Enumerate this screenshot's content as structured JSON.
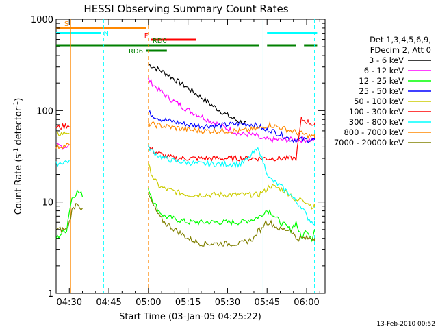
{
  "chart_data": {
    "type": "line",
    "title": "HESSI Observing Summary Count Rates",
    "xlabel": "Start Time (03-Jan-05 04:25:22)",
    "ylabel_main": "Count Rate (s",
    "ylabel_sup1": "-1",
    "ylabel_mid": " detector",
    "ylabel_sup2": "-1",
    "ylabel_end": ")",
    "y_scale": "log",
    "ylim": [
      1,
      1000
    ],
    "xlim_minutes": [
      -5,
      97
    ],
    "x_ticks": [
      {
        "label": "04:30",
        "min": 0
      },
      {
        "label": "04:45",
        "min": 15
      },
      {
        "label": "05:00",
        "min": 30
      },
      {
        "label": "05:15",
        "min": 45
      },
      {
        "label": "05:30",
        "min": 60
      },
      {
        "label": "05:45",
        "min": 75
      },
      {
        "label": "06:00",
        "min": 90
      }
    ],
    "y_ticks": [
      {
        "label": "1",
        "value": 1
      },
      {
        "label": "10",
        "value": 10
      },
      {
        "label": "100",
        "value": 100
      },
      {
        "label": "1000",
        "value": 1000
      }
    ],
    "legend_header": [
      "Det 1,3,4,5,6,9,",
      "FDecim 2, Att 0"
    ],
    "legend_placement": "right",
    "series": [
      {
        "name": "3 - 6 keV",
        "color": "#000000",
        "x": [
          30,
          32,
          35,
          38,
          41,
          44,
          47,
          50,
          53,
          56,
          59,
          62,
          65,
          67
        ],
        "y": [
          320,
          300,
          270,
          240,
          210,
          185,
          160,
          140,
          120,
          105,
          92,
          82,
          75,
          72
        ]
      },
      {
        "name": "6 - 12 keV",
        "color": "#ff00ff",
        "x": [
          -5,
          -2,
          0,
          30,
          32,
          35,
          38,
          41,
          44,
          47,
          50,
          53,
          56,
          59,
          62,
          65,
          68,
          71,
          73,
          74,
          76,
          78,
          80,
          82,
          84,
          86,
          88,
          90,
          92,
          93
        ],
        "y": [
          42,
          40,
          42,
          220,
          190,
          160,
          135,
          120,
          105,
          95,
          87,
          78,
          72,
          65,
          60,
          55,
          55,
          53,
          48,
          48,
          48,
          48,
          48,
          48,
          48,
          48,
          48,
          48,
          48,
          48
        ]
      },
      {
        "name": "12 - 25 keV",
        "color": "#00ff00",
        "x": [
          -5,
          -3,
          -1,
          0,
          1,
          3,
          5,
          30,
          32,
          34,
          36,
          40,
          45,
          50,
          55,
          60,
          65,
          70,
          72,
          73,
          74,
          76,
          80,
          84,
          86,
          88,
          90,
          92,
          93
        ],
        "y": [
          4,
          4.5,
          5,
          8,
          11,
          13,
          12,
          14,
          10,
          8,
          7,
          6.5,
          6,
          6,
          6,
          6,
          6,
          6.5,
          7,
          7,
          8,
          8,
          6,
          5,
          6,
          4,
          5,
          4,
          5
        ]
      },
      {
        "name": "25 - 50 keV",
        "color": "#0000ff",
        "x": [
          30,
          32,
          35,
          40,
          45,
          50,
          55,
          60,
          65,
          70,
          73,
          74,
          76,
          78,
          80,
          82,
          84,
          86,
          88,
          90,
          92,
          93
        ],
        "y": [
          95,
          88,
          80,
          75,
          70,
          68,
          68,
          70,
          72,
          70,
          65,
          60,
          62,
          58,
          55,
          52,
          48,
          48,
          48,
          48,
          48,
          48
        ]
      },
      {
        "name": "50 - 100 keV",
        "color": "#cccc00",
        "x": [
          -5,
          -3,
          0,
          30,
          32,
          34,
          36,
          40,
          45,
          50,
          55,
          60,
          65,
          70,
          72,
          73,
          74,
          76,
          80,
          84,
          86,
          88,
          90,
          92,
          93
        ],
        "y": [
          55,
          56,
          58,
          25,
          18,
          15,
          14,
          13,
          12,
          12,
          12,
          12,
          12,
          12,
          12,
          13,
          13,
          15,
          14,
          12,
          10,
          11,
          10,
          9,
          9
        ]
      },
      {
        "name": "100 - 300 keV",
        "color": "#ff0000",
        "x": [
          -5,
          -3,
          0,
          30,
          32,
          34,
          36,
          40,
          45,
          50,
          55,
          60,
          65,
          70,
          72,
          73,
          74,
          76,
          80,
          84,
          86,
          88,
          90,
          92,
          93
        ],
        "y": [
          65,
          66,
          70,
          40,
          36,
          34,
          32,
          30,
          30,
          30,
          30,
          30,
          30,
          30,
          30,
          30,
          30,
          30,
          30,
          30,
          30,
          80,
          76,
          72,
          70
        ]
      },
      {
        "name": "300 - 800 keV",
        "color": "#00ffff",
        "x": [
          -5,
          -3,
          0,
          30,
          32,
          34,
          36,
          40,
          45,
          50,
          55,
          60,
          65,
          68,
          70,
          72,
          73,
          74,
          76,
          80,
          84,
          86,
          88,
          90,
          92,
          93
        ],
        "y": [
          26,
          27,
          28,
          40,
          35,
          32,
          30,
          28,
          27,
          26,
          26,
          26,
          26,
          30,
          35,
          38,
          30,
          25,
          18,
          15,
          12,
          10,
          9,
          7,
          6,
          6
        ]
      },
      {
        "name": "800 - 7000 keV",
        "color": "#ff8800",
        "x": [
          -5,
          -3,
          0,
          30,
          32,
          35,
          40,
          45,
          50,
          55,
          60,
          65,
          70,
          73,
          74,
          76,
          80,
          84,
          86,
          88,
          90,
          92,
          93
        ],
        "y": [
          40,
          41,
          42,
          72,
          70,
          68,
          65,
          62,
          60,
          60,
          60,
          60,
          62,
          65,
          68,
          70,
          65,
          60,
          58,
          56,
          54,
          52,
          52
        ]
      },
      {
        "name": "7000 - 20000 keV",
        "color": "#808000",
        "x": [
          -5,
          -3,
          -1,
          0,
          1,
          3,
          5,
          30,
          32,
          34,
          36,
          40,
          45,
          50,
          55,
          60,
          65,
          70,
          72,
          73,
          74,
          76,
          80,
          84,
          86,
          88,
          90,
          92,
          93
        ],
        "y": [
          5,
          5,
          5,
          6,
          8,
          10,
          8,
          12,
          9,
          7,
          6,
          5,
          4,
          3.5,
          3.5,
          3.5,
          3.5,
          4,
          5,
          5,
          6,
          6,
          5,
          5,
          4,
          4,
          4,
          4,
          4
        ]
      }
    ],
    "flag_bars": [
      {
        "label": "S",
        "color": "#ff8800",
        "start": -5,
        "end": 29,
        "row": "S"
      },
      {
        "label": "N",
        "color": "#00ffff",
        "start": -5,
        "end": 12,
        "row": "N"
      },
      {
        "label": "N",
        "color": "#00ffff",
        "start": 75,
        "end": 94,
        "row": "N"
      },
      {
        "label": "F",
        "color": "#ff0000",
        "start": 31,
        "end": 48,
        "row": "F"
      },
      {
        "label": "RD0",
        "color": "#008000",
        "start": -5,
        "end": 72,
        "row": "RD0"
      },
      {
        "label": "RD0",
        "color": "#008000",
        "start": 75,
        "end": 86,
        "row": "RD0"
      },
      {
        "label": "RD0",
        "color": "#008000",
        "start": 89,
        "end": 94,
        "row": "RD0"
      },
      {
        "label": "RD6",
        "color": "#008000",
        "start": 29,
        "end": 37,
        "row": "RD6"
      }
    ],
    "vlines": [
      {
        "min": 0.5,
        "color": "#ff8800",
        "dash": false
      },
      {
        "min": 13,
        "color": "#00ffff",
        "dash": true
      },
      {
        "min": 30,
        "color": "#ff8800",
        "dash": true
      },
      {
        "min": 73.5,
        "color": "#00ffff",
        "dash": false
      },
      {
        "min": 93,
        "color": "#00ffff",
        "dash": true
      }
    ]
  },
  "footer": {
    "timestamp": "13-Feb-2010 00:52"
  }
}
